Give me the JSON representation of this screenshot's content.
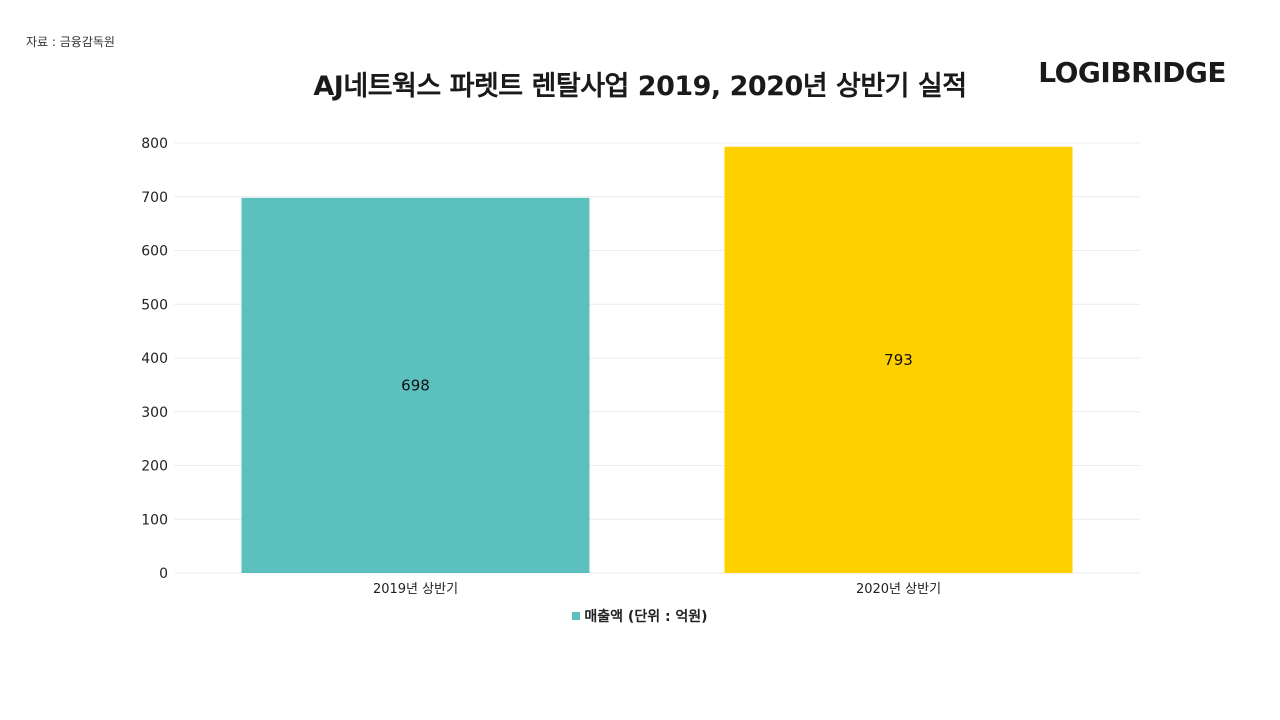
{
  "source_note": "자료 : 금융감독원",
  "logo": "LOGIBRIDGE",
  "colors": {
    "bar_2019": "#5bc0be",
    "bar_2020": "#ffd000",
    "grid": "#ececec"
  },
  "chart_data": {
    "type": "bar",
    "title": "AJ네트웍스 파렛트 렌탈사업 2019, 2020년 상반기 실적",
    "categories": [
      "2019년 상반기",
      "2020년 상반기"
    ],
    "series": [
      {
        "name": "매출액 (단위 : 억원)",
        "values": [
          698,
          793
        ]
      }
    ],
    "data_labels": [
      "698",
      "793"
    ],
    "ylim": [
      0,
      800
    ],
    "yticks": [
      0,
      100,
      200,
      300,
      400,
      500,
      600,
      700,
      800
    ],
    "grid": true,
    "legend_position": "bottom"
  }
}
